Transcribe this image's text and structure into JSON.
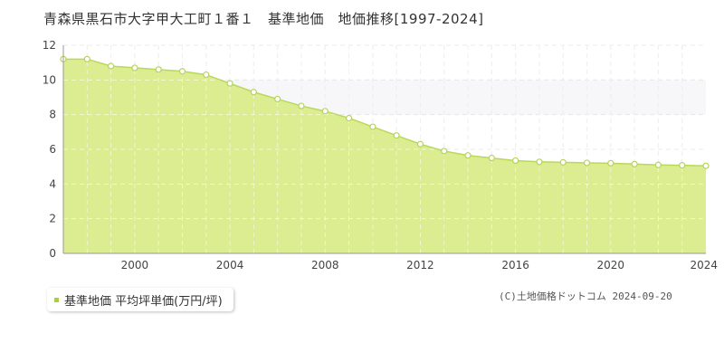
{
  "title": "青森県黒石市大字甲大工町１番１　基準地価　地価推移[1997-2024]",
  "legend": {
    "label": "基準地価 平均坪単価(万円/坪)"
  },
  "copyright": "(C)土地価格ドットコム 2024-09-20",
  "colors": {
    "fill": "#dcec90",
    "line": "#b8d95a",
    "marker_stroke": "#b5d35c",
    "legend_swatch": "#a8d03c"
  },
  "chart_data": {
    "type": "area",
    "title": "青森県黒石市大字甲大工町１番１　基準地価　地価推移[1997-2024]",
    "xlabel": "",
    "ylabel": "",
    "xlim": [
      1997,
      2024
    ],
    "ylim": [
      0,
      12
    ],
    "grid": true,
    "legend_position": "bottom-left",
    "x_ticks": [
      2000,
      2004,
      2008,
      2012,
      2016,
      2020,
      2024
    ],
    "y_ticks": [
      0,
      2,
      4,
      6,
      8,
      10,
      12
    ],
    "series": [
      {
        "name": "基準地価 平均坪単価(万円/坪)",
        "x": [
          1997,
          1998,
          1999,
          2000,
          2001,
          2002,
          2003,
          2004,
          2005,
          2006,
          2007,
          2008,
          2009,
          2010,
          2011,
          2012,
          2013,
          2014,
          2015,
          2016,
          2017,
          2018,
          2019,
          2020,
          2021,
          2022,
          2023,
          2024
        ],
        "values": [
          11.2,
          11.2,
          10.8,
          10.7,
          10.6,
          10.5,
          10.3,
          9.8,
          9.3,
          8.9,
          8.5,
          8.2,
          7.8,
          7.3,
          6.8,
          6.3,
          5.9,
          5.65,
          5.5,
          5.35,
          5.28,
          5.25,
          5.22,
          5.2,
          5.15,
          5.1,
          5.08,
          5.05
        ]
      }
    ]
  }
}
